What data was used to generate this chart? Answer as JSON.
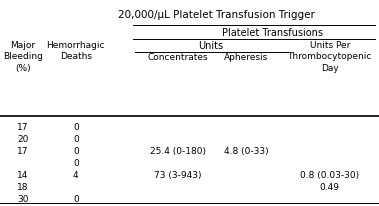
{
  "title": "20,000/μL Platelet Transfusion Trigger",
  "header_platelet": "Platelet Transfusions",
  "header_units": "Units",
  "header_col1": "Major\nBleeding\n(%)",
  "header_col2": "Hemorrhagic\nDeaths",
  "header_col3": "Concentrates",
  "header_col4": "Apheresis",
  "header_col5": "Units Per\nThrombocytopenic\nDay",
  "rows": [
    [
      "17",
      "0",
      "",
      "",
      ""
    ],
    [
      "20",
      "0",
      "",
      "",
      ""
    ],
    [
      "17",
      "0",
      "25.4 (0-180)",
      "4.8 (0-33)",
      ""
    ],
    [
      "",
      "0",
      "",
      "",
      ""
    ],
    [
      "14",
      "4",
      "73 (3-943)",
      "",
      "0.8 (0.03-30)"
    ],
    [
      "18",
      "",
      "",
      "",
      "0.49"
    ],
    [
      "30",
      "0",
      "",
      "",
      ""
    ]
  ],
  "text_color": "#000000",
  "line_color": "#000000",
  "font_size": 6.5,
  "title_font_size": 7.5
}
